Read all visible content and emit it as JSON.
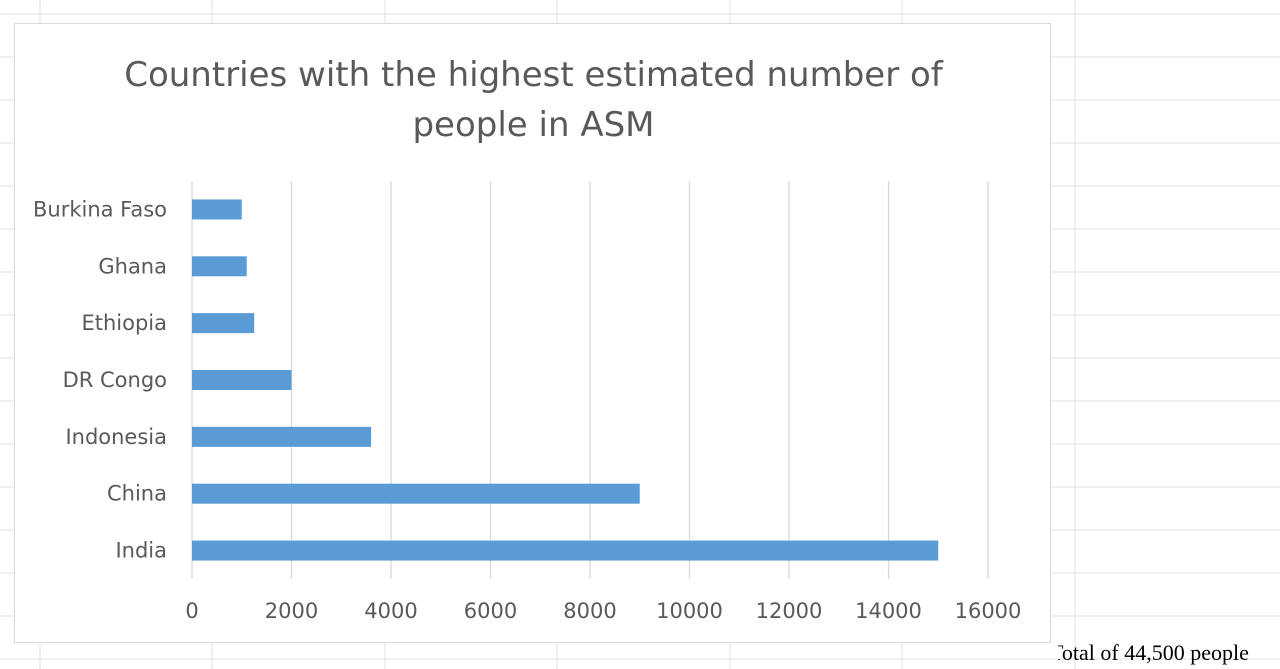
{
  "colors": {
    "bar": "#5b9bd5",
    "gridline": "#d9d9d9",
    "axis_text": "#595959",
    "title_text": "#595959",
    "sheet_grid": "#e0e0e0"
  },
  "chart_data": {
    "type": "bar",
    "orientation": "horizontal",
    "title": "Countries with the highest estimated number of people in ASM",
    "title_lines": [
      "Countries with the highest estimated number of",
      "people in ASM"
    ],
    "categories": [
      "India",
      "China",
      "Indonesia",
      "DR Congo",
      "Ethiopia",
      "Ghana",
      "Burkina Faso"
    ],
    "values": [
      15000,
      9000,
      3600,
      2000,
      1250,
      1100,
      1000
    ],
    "xlim": [
      0,
      16000
    ],
    "xticks": [
      "0",
      "2000",
      "4000",
      "6000",
      "8000",
      "10000",
      "12000",
      "14000",
      "16000"
    ],
    "xlabel": "",
    "ylabel": "",
    "grid": "vertical",
    "legend": "none"
  },
  "annotation": {
    "text": "Total of 44,500 people"
  }
}
